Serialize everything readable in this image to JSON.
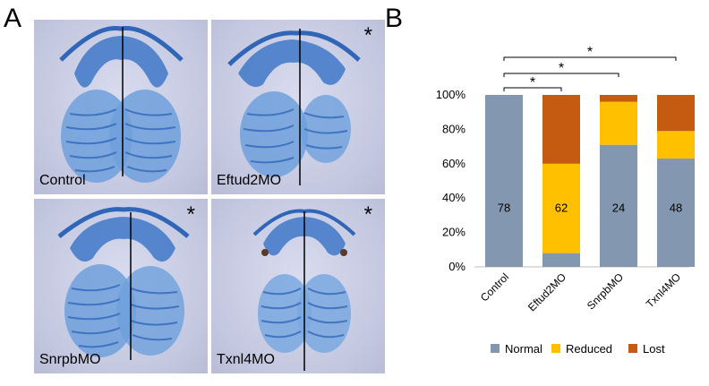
{
  "panel_a": {
    "letter": "A",
    "images": [
      {
        "label": "Control",
        "asterisk": ""
      },
      {
        "label": "Eftud2MO",
        "asterisk": "*"
      },
      {
        "label": "SnrpbMO",
        "asterisk": "*"
      },
      {
        "label": "Txnl4MO",
        "asterisk": "*"
      }
    ]
  },
  "panel_b": {
    "letter": "B"
  },
  "chart_data": {
    "type": "bar",
    "stacked": true,
    "categories": [
      "Control",
      "Eftud2MO",
      "SnrpbMO",
      "Txnl4MO"
    ],
    "series": [
      {
        "name": "Normal",
        "color": "#8497b0",
        "values": [
          100,
          8,
          71,
          63
        ]
      },
      {
        "name": "Reduced",
        "color": "#ffc000",
        "values": [
          0,
          52,
          25,
          16
        ]
      },
      {
        "name": "Lost",
        "color": "#c55a11",
        "values": [
          0,
          40,
          4,
          21
        ]
      }
    ],
    "bar_labels": [
      "78",
      "62",
      "24",
      "48"
    ],
    "y_ticks": [
      "0%",
      "20%",
      "40%",
      "60%",
      "80%",
      "100%"
    ],
    "ylim": [
      0,
      100
    ],
    "legend_position": "bottom",
    "significance": [
      {
        "from": "Control",
        "to": "Eftud2MO",
        "mark": "*"
      },
      {
        "from": "Control",
        "to": "SnrpbMO",
        "mark": "*"
      },
      {
        "from": "Control",
        "to": "Txnl4MO",
        "mark": "*"
      }
    ]
  }
}
